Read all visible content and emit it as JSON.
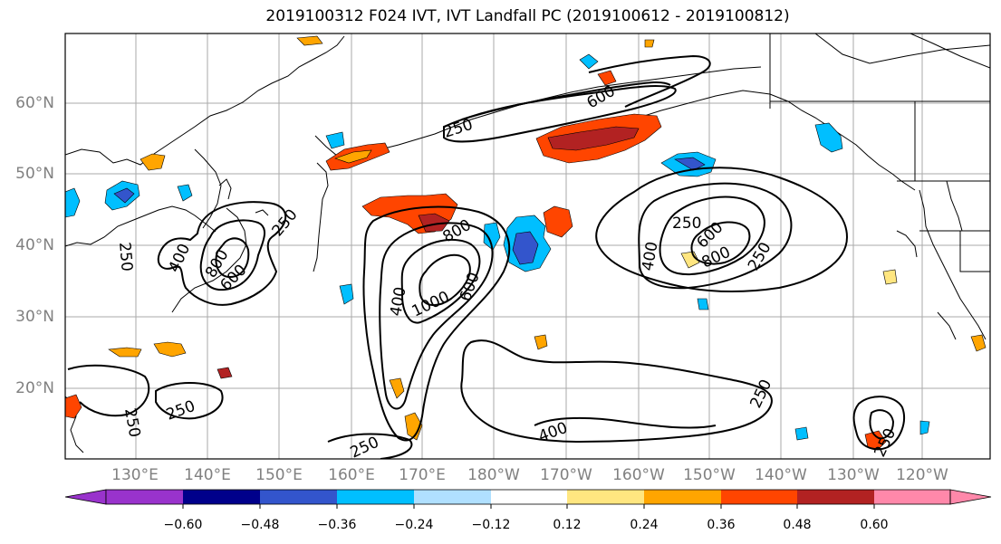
{
  "title": "2019100312 F024 IVT, IVT Landfall PC (2019100612 - 2019100812)",
  "lat_labels": [
    "60°N",
    "50°N",
    "40°N",
    "30°N",
    "20°N"
  ],
  "lon_labels": [
    "130°E",
    "140°E",
    "150°E",
    "160°E",
    "170°E",
    "180°W",
    "170°W",
    "160°W",
    "150°W",
    "140°W",
    "130°W",
    "120°W"
  ],
  "contour_labels": [
    "250",
    "250",
    "250",
    "250",
    "250",
    "250",
    "250",
    "250",
    "250",
    "250",
    "400",
    "400",
    "400",
    "400",
    "600",
    "600",
    "600",
    "600",
    "800",
    "800",
    "800",
    "1000",
    "1000",
    "400"
  ],
  "colorbar": {
    "colors": [
      "#9933cc",
      "#00008b",
      "#3355cc",
      "#00bfff",
      "#b0e0ff",
      "#ffffff",
      "#ffe680",
      "#ffa500",
      "#ff4500",
      "#b22222",
      "#ff88aa"
    ],
    "ticks": [
      "−0.60",
      "−0.48",
      "−0.36",
      "−0.24",
      "−0.12",
      "0.12",
      "0.24",
      "0.36",
      "0.48",
      "0.60"
    ]
  }
}
